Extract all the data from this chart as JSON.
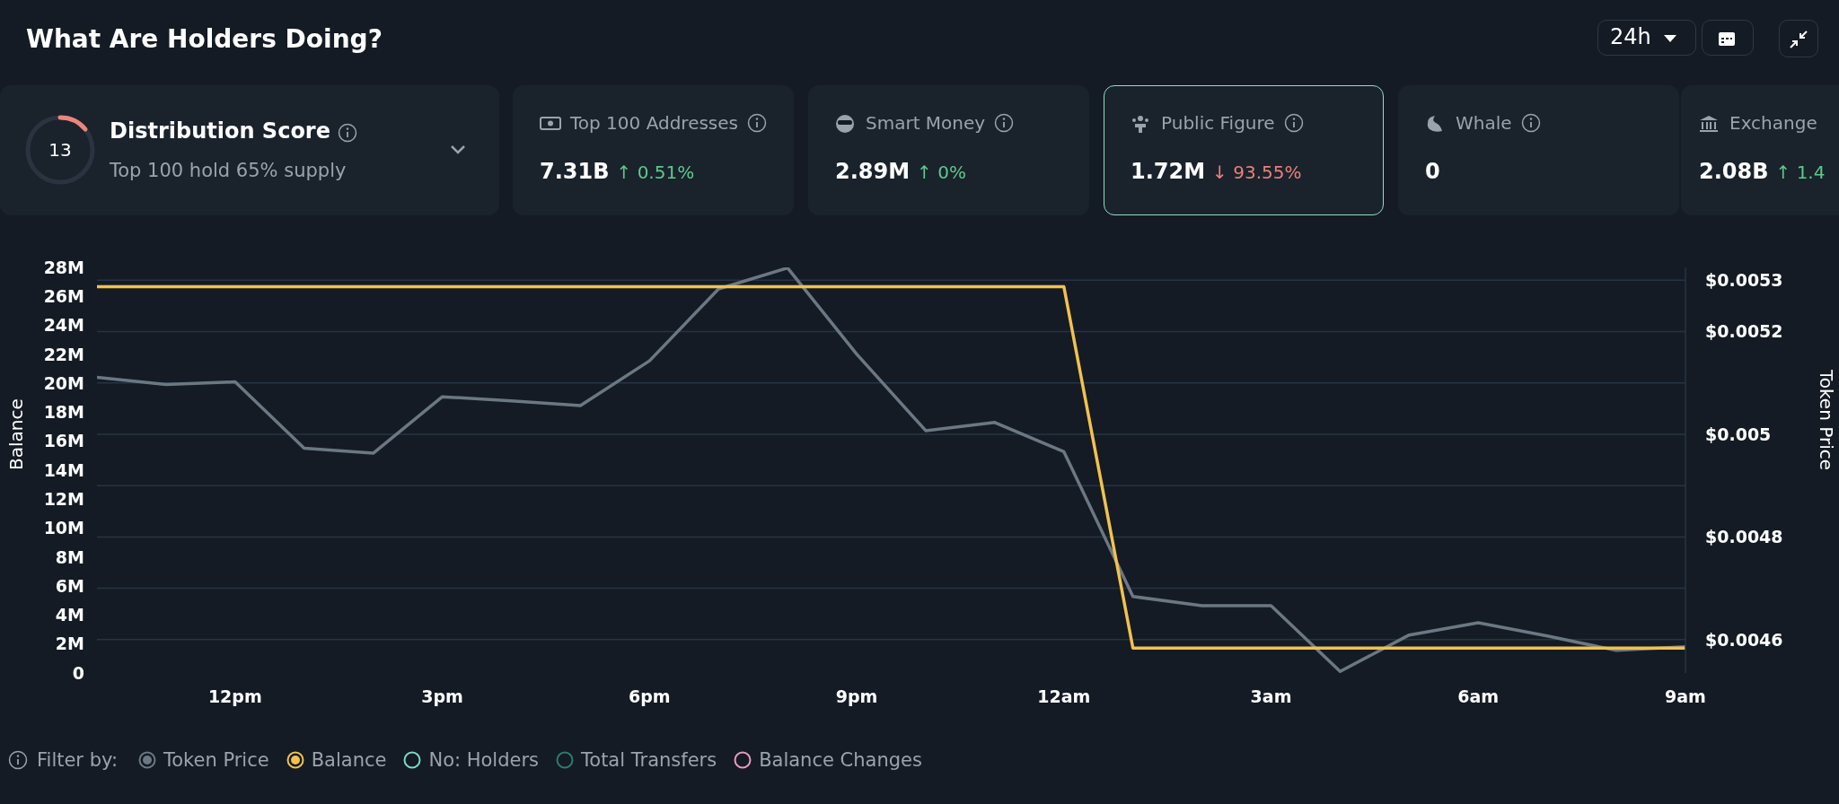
{
  "chart_data": [
    {
      "type": "other",
      "title": "What Are Holders Doing?",
      "annotations": [
        "24h",
        "13",
        "Distribution Score",
        "Top 100 hold 65% supply",
        "Top 100 Addresses",
        "7.31B",
        "↑ 0.51%",
        "Smart Money",
        "2.89M",
        "↑ 0%",
        "Public Figure",
        "1.72M",
        "↓ 93.55%",
        "Whale",
        "0",
        "Exchange",
        "2.08B",
        "↑ 1.4"
      ]
    },
    {
      "type": "line",
      "ylabel": "Balance",
      "y2label": "Token Price",
      "legend_title": "Filter by:",
      "legend": "bottom",
      "grid": "y2",
      "marker": "none",
      "line_style": "solid",
      "categories": [
        null,
        null,
        "12pm",
        null,
        null,
        "3pm",
        null,
        null,
        "6pm",
        null,
        null,
        "9pm",
        null,
        null,
        "12am",
        null,
        null,
        "3am",
        null,
        null,
        "6am",
        null,
        null,
        "9am"
      ],
      "ylim": [
        0,
        28000000
      ],
      "yticks": [
        0,
        {
          "value": 2000000,
          "label": "2M"
        },
        {
          "value": 4000000,
          "label": "4M"
        },
        {
          "value": 6000000,
          "label": "6M"
        },
        {
          "value": 8000000,
          "label": "8M"
        },
        {
          "value": 10000000,
          "label": "10M"
        },
        {
          "value": 12000000,
          "label": "12M"
        },
        {
          "value": 14000000,
          "label": "14M"
        },
        {
          "value": 16000000,
          "label": "16M"
        },
        {
          "value": 18000000,
          "label": "18M"
        },
        {
          "value": 20000000,
          "label": "20M"
        },
        {
          "value": 22000000,
          "label": "22M"
        },
        {
          "value": 24000000,
          "label": "24M"
        },
        {
          "value": 26000000,
          "label": "26M"
        },
        {
          "value": 28000000,
          "label": "28M"
        }
      ],
      "y2lim": [
        0.004535,
        0.005325
      ],
      "y2ticks": [
        {
          "value": 0.0046,
          "label": "$0.0046"
        },
        {
          "value": 0.0047,
          "label": null
        },
        {
          "value": 0.0048,
          "label": "$0.0048"
        },
        {
          "value": 0.0049,
          "label": null
        },
        {
          "value": 0.005,
          "label": "$0.005"
        },
        {
          "value": 0.0051,
          "label": null
        },
        {
          "value": 0.0052,
          "label": "$0.0052"
        },
        {
          "value": 0.0053,
          "label": "$0.0053"
        }
      ],
      "series": [
        {
          "name": "Token Price",
          "color": "#6b7884",
          "axis": "y2",
          "values": [
            0.005111,
            0.005097,
            0.005102,
            0.004973,
            0.004963,
            0.005073,
            0.005065,
            0.005056,
            0.005143,
            0.005283,
            0.005324,
            0.005156,
            0.005007,
            0.005023,
            0.004966,
            0.004684,
            0.004666,
            0.004666,
            0.004538,
            0.004609,
            0.004633,
            0.004607,
            0.004579,
            0.004586
          ]
        },
        {
          "name": "Balance",
          "color": "#f2c14e",
          "values": [
            26670000,
            26670000,
            26670000,
            26670000,
            26670000,
            26670000,
            26670000,
            26670000,
            26670000,
            26670000,
            26670000,
            26670000,
            26670000,
            26670000,
            26670000,
            1720000,
            1720000,
            1720000,
            1720000,
            1720000,
            1720000,
            1720000,
            1720000,
            1720000
          ]
        },
        {
          "name": "No: Holders",
          "color": "#7fd6c8",
          "values": [
            null,
            null,
            null,
            null,
            null,
            null,
            null,
            null,
            null,
            null,
            null,
            null,
            null,
            null,
            null,
            null,
            null,
            null,
            null,
            null,
            null,
            null,
            null,
            null
          ]
        },
        {
          "name": "Total Transfers",
          "color": "#2f7a6e",
          "values": [
            null,
            null,
            null,
            null,
            null,
            null,
            null,
            null,
            null,
            null,
            null,
            null,
            null,
            null,
            null,
            null,
            null,
            null,
            null,
            null,
            null,
            null,
            null,
            null
          ]
        },
        {
          "name": "Balance Changes",
          "color": "#e79ac3",
          "values": [
            null,
            null,
            null,
            null,
            null,
            null,
            null,
            null,
            null,
            null,
            null,
            null,
            null,
            null,
            null,
            null,
            null,
            null,
            null,
            null,
            null,
            null,
            null,
            null
          ]
        }
      ]
    }
  ]
}
